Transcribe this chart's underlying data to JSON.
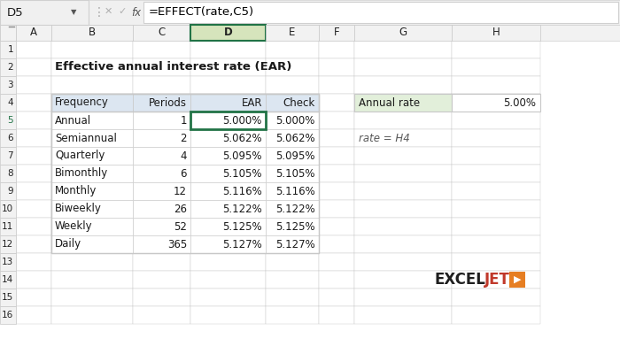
{
  "title": "Effective annual interest rate (EAR)",
  "formula_bar_cell": "D5",
  "formula_bar_formula": "=EFFECT(rate,C5)",
  "col_labels": [
    "A",
    "B",
    "C",
    "D",
    "E",
    "F",
    "G",
    "H"
  ],
  "table_headers": [
    "Frequency",
    "Periods",
    "EAR",
    "Check"
  ],
  "table_data": [
    [
      "Annual",
      "1",
      "5.000%",
      "5.000%"
    ],
    [
      "Semiannual",
      "2",
      "5.062%",
      "5.062%"
    ],
    [
      "Quarterly",
      "4",
      "5.095%",
      "5.095%"
    ],
    [
      "Bimonthly",
      "6",
      "5.105%",
      "5.105%"
    ],
    [
      "Monthly",
      "12",
      "5.116%",
      "5.116%"
    ],
    [
      "Biweekly",
      "26",
      "5.122%",
      "5.122%"
    ],
    [
      "Weekly",
      "52",
      "5.125%",
      "5.125%"
    ],
    [
      "Daily",
      "365",
      "5.127%",
      "5.127%"
    ]
  ],
  "annual_rate_label": "Annual rate",
  "annual_rate_value": "5.00%",
  "note_text": "rate = H4",
  "bg_color": "#ffffff",
  "grid_color": "#c8c8c8",
  "selected_col_bg": "#d6e4bc",
  "selected_col_border": "#217346",
  "cell_selected_border": "#217346",
  "table_header_bg": "#dce6f1",
  "toolbar_bg": "#f0f0f0",
  "row_col_header_bg": "#f2f2f2",
  "annual_rate_header_bg": "#e2efda",
  "exceljet_black": "#1f1f1f",
  "exceljet_red": "#c0392b",
  "exceljet_orange": "#e67e22",
  "formula_color": "#c7511f",
  "note_color": "#595959",
  "toolbar_border": "#d0d0d0",
  "row5_highlight": "#e8f0e0"
}
